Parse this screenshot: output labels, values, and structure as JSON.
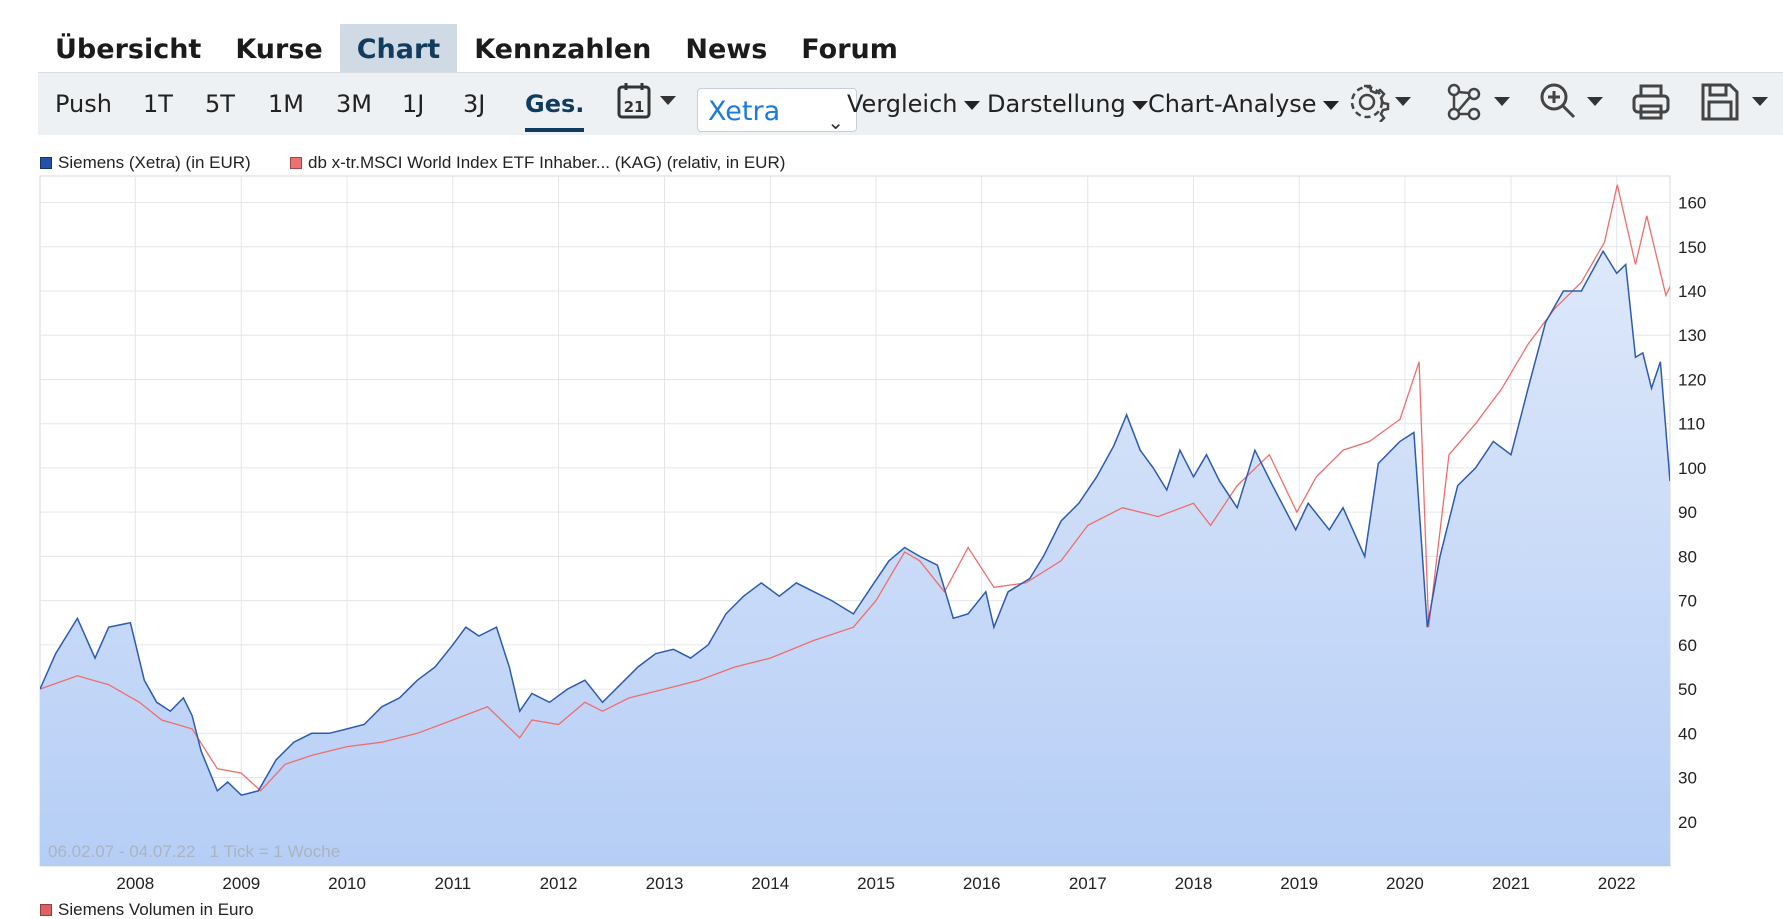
{
  "nav": {
    "tabs": [
      {
        "label": "Übersicht"
      },
      {
        "label": "Kurse"
      },
      {
        "label": "Chart"
      },
      {
        "label": "Kennzahlen"
      },
      {
        "label": "News"
      },
      {
        "label": "Forum"
      }
    ],
    "active_tab": "Chart"
  },
  "toolbar": {
    "ranges": [
      "Push",
      "1T",
      "5T",
      "1M",
      "3M",
      "1J",
      "3J",
      "Ges."
    ],
    "active_range": "Ges.",
    "calendar_icon_text": "21",
    "exchange_select": "Xetra",
    "menus": [
      "Vergleich",
      "Darstellung",
      "Chart-Analyse"
    ],
    "icons": [
      "calendar-icon",
      "gear-icon",
      "network-icon",
      "zoom-in-icon",
      "print-icon",
      "save-icon"
    ]
  },
  "chart_data": {
    "type": "area",
    "legend": [
      {
        "name": "Siemens (Xetra) (in EUR)",
        "color": "#2350a8"
      },
      {
        "name": "db x-tr.MSCI World Index ETF Inhaber... (KAG) (relativ, in EUR)",
        "color": "#f07070"
      }
    ],
    "y_axis_side": "right",
    "ylim": [
      10,
      166
    ],
    "yticks": [
      20,
      30,
      40,
      50,
      60,
      70,
      80,
      90,
      100,
      110,
      120,
      130,
      140,
      150,
      160
    ],
    "xlim": [
      "2007-02-06",
      "2022-07-04"
    ],
    "xticks": [
      "2008",
      "2009",
      "2010",
      "2011",
      "2012",
      "2013",
      "2014",
      "2015",
      "2016",
      "2017",
      "2018",
      "2019",
      "2020",
      "2021",
      "2022"
    ],
    "date_range_label": "06.02.07 - 04.07.22",
    "tick_label": "1 Tick = 1 Woche",
    "grid": true,
    "colors": {
      "siemens_line": "#2d5bb0",
      "siemens_fill_top": "#dde8fa",
      "siemens_fill_bottom": "#b6cef6",
      "msci_line": "#ee6e6e"
    },
    "series": [
      {
        "name": "Siemens (Xetra) (in EUR)",
        "style": "line+area",
        "x": [
          "2007-02-06",
          "2007-04-01",
          "2007-06-15",
          "2007-08-15",
          "2007-10-01",
          "2007-12-15",
          "2008-02-01",
          "2008-03-15",
          "2008-05-01",
          "2008-06-15",
          "2008-07-15",
          "2008-08-15",
          "2008-10-10",
          "2008-11-15",
          "2009-01-01",
          "2009-03-01",
          "2009-05-01",
          "2009-07-01",
          "2009-09-01",
          "2009-11-01",
          "2010-01-01",
          "2010-03-01",
          "2010-05-01",
          "2010-07-01",
          "2010-09-01",
          "2010-11-01",
          "2011-01-01",
          "2011-02-15",
          "2011-04-01",
          "2011-06-01",
          "2011-07-15",
          "2011-08-20",
          "2011-10-01",
          "2011-12-01",
          "2012-02-01",
          "2012-04-01",
          "2012-06-01",
          "2012-08-01",
          "2012-10-01",
          "2012-12-01",
          "2013-02-01",
          "2013-04-01",
          "2013-06-01",
          "2013-08-01",
          "2013-10-01",
          "2013-12-01",
          "2014-02-01",
          "2014-04-01",
          "2014-06-01",
          "2014-08-01",
          "2014-10-15",
          "2014-12-15",
          "2015-02-15",
          "2015-04-10",
          "2015-06-01",
          "2015-08-01",
          "2015-09-25",
          "2015-11-15",
          "2016-01-15",
          "2016-02-12",
          "2016-04-01",
          "2016-06-15",
          "2016-08-01",
          "2016-10-01",
          "2016-12-01",
          "2017-02-01",
          "2017-04-01",
          "2017-05-15",
          "2017-07-01",
          "2017-08-15",
          "2017-10-01",
          "2017-11-15",
          "2018-01-01",
          "2018-02-15",
          "2018-04-01",
          "2018-06-01",
          "2018-08-01",
          "2018-10-01",
          "2018-12-20",
          "2019-02-01",
          "2019-04-15",
          "2019-06-01",
          "2019-08-15",
          "2019-10-01",
          "2019-12-15",
          "2020-02-01",
          "2020-03-18",
          "2020-05-01",
          "2020-07-01",
          "2020-09-01",
          "2020-11-01",
          "2021-01-01",
          "2021-03-01",
          "2021-05-01",
          "2021-07-01",
          "2021-09-01",
          "2021-11-15",
          "2022-01-01",
          "2022-02-01",
          "2022-03-07",
          "2022-04-01",
          "2022-05-01",
          "2022-06-01",
          "2022-07-04"
        ],
        "values": [
          50,
          58,
          66,
          57,
          64,
          65,
          52,
          47,
          45,
          48,
          44,
          36,
          27,
          29,
          26,
          27,
          34,
          38,
          40,
          40,
          41,
          42,
          46,
          48,
          52,
          55,
          60,
          64,
          62,
          64,
          55,
          45,
          49,
          47,
          50,
          52,
          47,
          51,
          55,
          58,
          59,
          57,
          60,
          67,
          71,
          74,
          71,
          74,
          72,
          70,
          67,
          73,
          79,
          82,
          80,
          78,
          66,
          67,
          72,
          64,
          72,
          75,
          80,
          88,
          92,
          98,
          105,
          112,
          104,
          100,
          95,
          104,
          98,
          103,
          97,
          91,
          104,
          96,
          86,
          92,
          86,
          91,
          80,
          101,
          106,
          108,
          64,
          80,
          96,
          100,
          106,
          103,
          118,
          133,
          140,
          140,
          149,
          144,
          146,
          125,
          126,
          118,
          124,
          97
        ]
      },
      {
        "name": "db x-tr.MSCI World Index ETF Inhaber... (KAG) (relativ, in EUR)",
        "style": "line",
        "x": [
          "2007-02-06",
          "2007-06-15",
          "2007-10-01",
          "2008-01-15",
          "2008-04-01",
          "2008-07-15",
          "2008-10-10",
          "2009-01-01",
          "2009-03-09",
          "2009-06-01",
          "2009-09-01",
          "2010-01-01",
          "2010-05-01",
          "2010-09-01",
          "2011-01-01",
          "2011-05-01",
          "2011-08-20",
          "2011-10-01",
          "2012-01-01",
          "2012-04-01",
          "2012-06-01",
          "2012-09-01",
          "2013-01-01",
          "2013-05-01",
          "2013-09-01",
          "2014-01-01",
          "2014-06-01",
          "2014-10-15",
          "2015-01-01",
          "2015-04-10",
          "2015-06-01",
          "2015-08-25",
          "2015-11-15",
          "2016-02-12",
          "2016-06-01",
          "2016-10-01",
          "2017-01-01",
          "2017-05-01",
          "2017-09-01",
          "2018-01-01",
          "2018-03-01",
          "2018-06-01",
          "2018-09-20",
          "2018-12-24",
          "2019-03-01",
          "2019-06-01",
          "2019-09-01",
          "2019-12-15",
          "2020-02-19",
          "2020-03-23",
          "2020-06-01",
          "2020-09-01",
          "2020-12-01",
          "2021-03-01",
          "2021-06-01",
          "2021-09-01",
          "2021-11-20",
          "2022-01-03",
          "2022-03-07",
          "2022-04-15",
          "2022-06-20",
          "2022-07-04"
        ],
        "values": [
          50,
          53,
          51,
          47,
          43,
          41,
          32,
          31,
          27,
          33,
          35,
          37,
          38,
          40,
          43,
          46,
          39,
          43,
          42,
          47,
          45,
          48,
          50,
          52,
          55,
          57,
          61,
          64,
          70,
          81,
          79,
          72,
          82,
          73,
          74,
          79,
          87,
          91,
          89,
          92,
          87,
          96,
          103,
          90,
          98,
          104,
          106,
          111,
          124,
          64,
          103,
          110,
          118,
          128,
          136,
          142,
          151,
          164,
          146,
          157,
          139,
          141
        ]
      }
    ]
  },
  "volume_legend": {
    "label": "Siemens Volumen in Euro",
    "color": "#e06060"
  }
}
